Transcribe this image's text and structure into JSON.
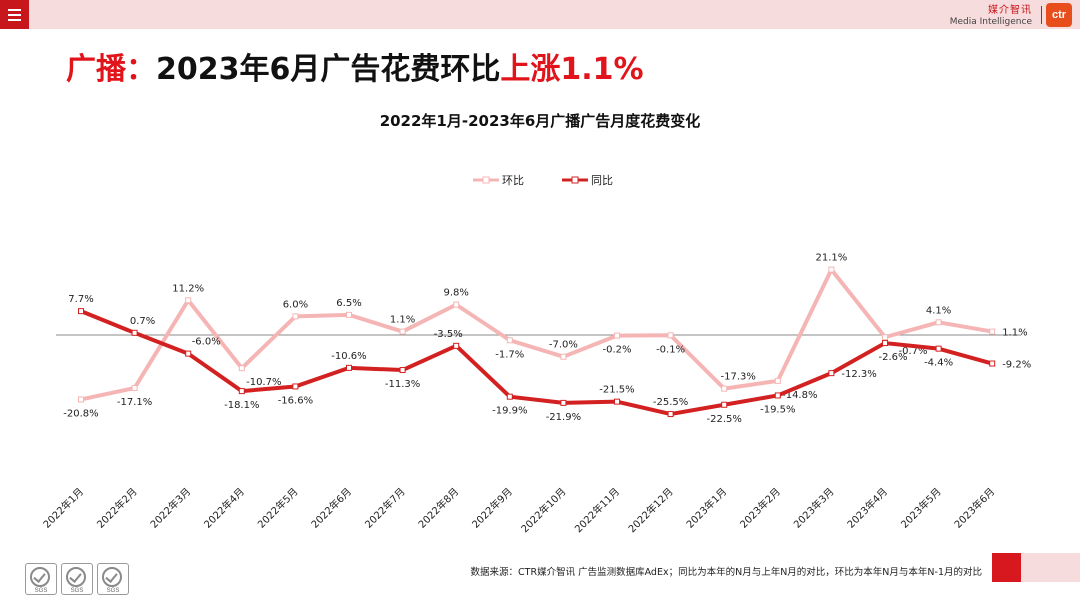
{
  "header": {
    "brand_cn": "媒介智讯",
    "brand_en": "Media Intelligence",
    "logo_text": "ctr"
  },
  "headline": {
    "prefix": "广播：",
    "main": "2023年6月广告花费环比",
    "highlight": "上涨1.1%"
  },
  "chart_data": {
    "type": "line",
    "title": "2022年1月-2023年6月广播广告月度花费变化",
    "categories": [
      "2022年1月",
      "2022年2月",
      "2022年3月",
      "2022年4月",
      "2022年5月",
      "2022年6月",
      "2022年7月",
      "2022年8月",
      "2022年9月",
      "2022年10月",
      "2022年11月",
      "2022年12月",
      "2023年1月",
      "2023年2月",
      "2023年3月",
      "2023年4月",
      "2023年5月",
      "2023年6月"
    ],
    "series": [
      {
        "name": "环比",
        "color": "#f5b5b5",
        "values": [
          -20.8,
          -17.1,
          11.2,
          -10.7,
          6.0,
          6.5,
          1.1,
          9.8,
          -1.7,
          -7.0,
          -0.2,
          -0.1,
          -17.3,
          -14.8,
          21.1,
          -0.7,
          4.1,
          1.1
        ],
        "labels": [
          "-20.8%",
          "-17.1%",
          "11.2%",
          "-10.7%",
          "6.0%",
          "6.5%",
          "1.1%",
          "9.8%",
          "-1.7%",
          "-7.0%",
          "-0.2%",
          "-0.1%",
          "-17.3%",
          "-14.8%",
          "21.1%",
          "-0.7%",
          "4.1%",
          "1.1%"
        ]
      },
      {
        "name": "同比",
        "color": "#d32020",
        "values": [
          7.7,
          0.7,
          -6.0,
          -18.1,
          -16.6,
          -10.6,
          -11.3,
          -3.5,
          -19.9,
          -21.9,
          -21.5,
          -25.5,
          -22.5,
          -19.5,
          -12.3,
          -2.6,
          -4.4,
          -9.2
        ],
        "labels": [
          "7.7%",
          "0.7%",
          "-6.0%",
          "-18.1%",
          "-16.6%",
          "-10.6%",
          "-11.3%",
          "-3.5%",
          "-19.9%",
          "-21.9%",
          "-21.5%",
          "-25.5%",
          "-22.5%",
          "-19.5%",
          "-12.3%",
          "-2.6%",
          "-4.4%",
          "-9.2%"
        ]
      }
    ],
    "ylim": [
      -30,
      25
    ],
    "legend": "top-center",
    "grid": false
  },
  "footnote": "数据来源：CTR媒介智讯 广告监测数据库AdEx；同比为本年的N月与上年N月的对比，环比为本年N月与本年N-1月的对比",
  "badges": [
    "SGS",
    "SGS",
    "SGS"
  ]
}
